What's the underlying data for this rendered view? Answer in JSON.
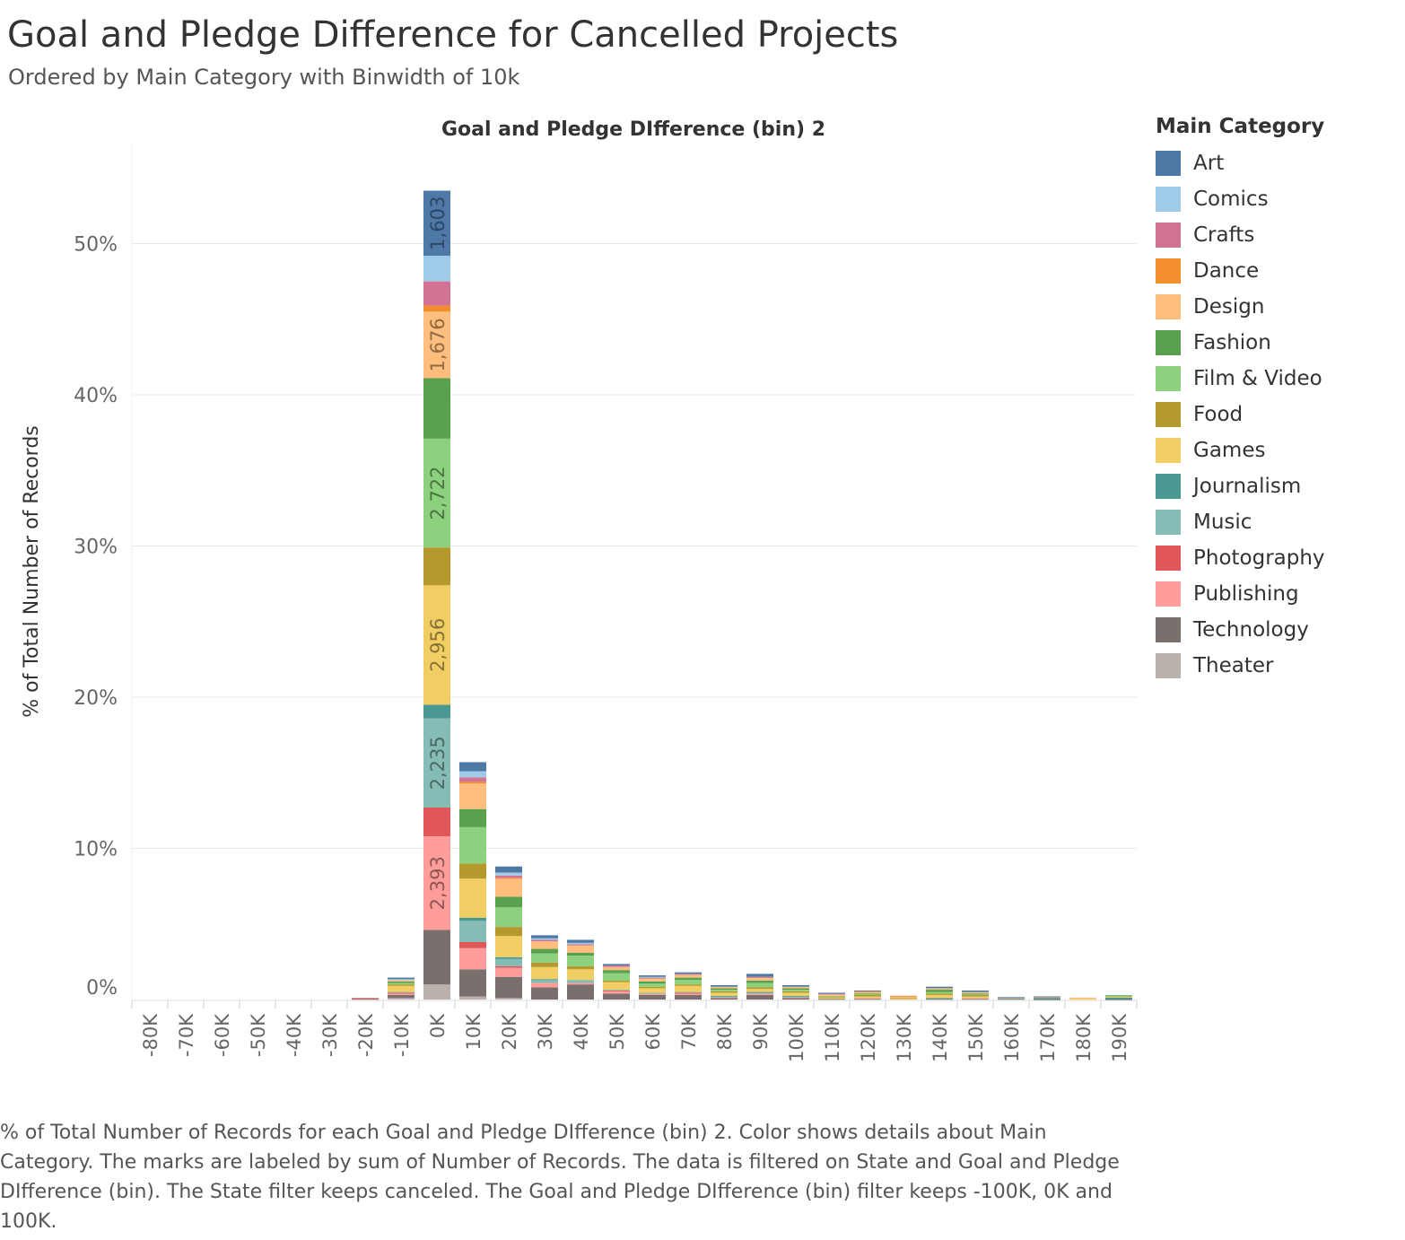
{
  "chart_data": {
    "type": "bar",
    "stacked": true,
    "title": "Goal and Pledge Difference for Cancelled Projects",
    "subtitle": "Ordered by Main Category with Binwidth of 10k",
    "column_header": "Goal and Pledge DIfference (bin) 2",
    "ylabel": "% of Total Number of Records",
    "ylim": [
      0,
      56
    ],
    "y_ticks": [
      0,
      10,
      20,
      30,
      40,
      50
    ],
    "y_tick_labels": [
      "0%",
      "10%",
      "20%",
      "30%",
      "40%",
      "50%"
    ],
    "grid": true,
    "legend_position": "right",
    "legend_title": "Main Category",
    "categories": [
      "-80K",
      "-70K",
      "-60K",
      "-50K",
      "-40K",
      "-30K",
      "-20K",
      "-10K",
      "0K",
      "10K",
      "20K",
      "30K",
      "40K",
      "50K",
      "60K",
      "70K",
      "80K",
      "90K",
      "100K",
      "110K",
      "120K",
      "130K",
      "140K",
      "150K",
      "160K",
      "170K",
      "180K",
      "190K"
    ],
    "series": [
      {
        "name": "Theater",
        "color": "#BAB0AC",
        "values": [
          0,
          0,
          0,
          0,
          0,
          0,
          0,
          0.1,
          1.0,
          0.2,
          0.1,
          0,
          0,
          0,
          0,
          0,
          0,
          0,
          0,
          0,
          0,
          0,
          0,
          0,
          0,
          0,
          0,
          0
        ]
      },
      {
        "name": "Technology",
        "color": "#79706E",
        "values": [
          0,
          0,
          0,
          0,
          0,
          0,
          0.05,
          0.2,
          3.6,
          1.8,
          1.4,
          0.8,
          1.0,
          0.4,
          0.3,
          0.3,
          0.1,
          0.3,
          0.1,
          0.05,
          0.05,
          0,
          0.05,
          0.05,
          0.05,
          0.03,
          0,
          0.03
        ]
      },
      {
        "name": "Publishing",
        "color": "#FF9D9A",
        "values": [
          0,
          0,
          0,
          0,
          0,
          0,
          0,
          0.1,
          6.2,
          1.4,
          0.6,
          0.3,
          0.1,
          0.15,
          0.1,
          0.1,
          0.05,
          0.1,
          0.05,
          0,
          0.05,
          0,
          0,
          0.05,
          0,
          0,
          0,
          0
        ]
      },
      {
        "name": "Photography",
        "color": "#E15759",
        "values": [
          0,
          0,
          0,
          0,
          0,
          0,
          0.05,
          0.05,
          1.9,
          0.4,
          0.1,
          0,
          0,
          0.05,
          0,
          0.05,
          0,
          0,
          0,
          0,
          0,
          0,
          0,
          0,
          0,
          0,
          0,
          0
        ]
      },
      {
        "name": "Music",
        "color": "#86BCB6",
        "values": [
          0,
          0,
          0,
          0,
          0,
          0,
          0,
          0.05,
          5.9,
          1.4,
          0.5,
          0.2,
          0.2,
          0.05,
          0.05,
          0.05,
          0.05,
          0.05,
          0.05,
          0,
          0,
          0,
          0,
          0,
          0,
          0,
          0,
          0
        ]
      },
      {
        "name": "Journalism",
        "color": "#499894",
        "values": [
          0,
          0,
          0,
          0,
          0,
          0,
          0,
          0,
          0.9,
          0.2,
          0.1,
          0.05,
          0,
          0,
          0,
          0,
          0.05,
          0.05,
          0.05,
          0,
          0,
          0,
          0.05,
          0,
          0.03,
          0.1,
          0,
          0.1
        ]
      },
      {
        "name": "Games",
        "color": "#F1CE63",
        "values": [
          0,
          0,
          0,
          0,
          0,
          0,
          0,
          0.4,
          7.9,
          2.6,
          1.4,
          0.8,
          0.7,
          0.5,
          0.3,
          0.4,
          0.2,
          0.2,
          0.2,
          0.1,
          0.1,
          0.05,
          0.2,
          0.1,
          0,
          0,
          0.05,
          0.05
        ]
      },
      {
        "name": "Food",
        "color": "#B6992D",
        "values": [
          0,
          0,
          0,
          0,
          0,
          0,
          0,
          0.1,
          2.5,
          1.0,
          0.6,
          0.3,
          0.2,
          0.1,
          0.1,
          0.1,
          0.1,
          0.1,
          0.1,
          0.05,
          0.1,
          0.05,
          0.1,
          0.1,
          0,
          0,
          0,
          0
        ]
      },
      {
        "name": "Film & Video",
        "color": "#8CD17D",
        "values": [
          0,
          0,
          0,
          0,
          0,
          0,
          0,
          0.1,
          7.2,
          2.4,
          1.3,
          0.6,
          0.7,
          0.5,
          0.2,
          0.3,
          0.1,
          0.3,
          0.1,
          0.05,
          0.05,
          0,
          0.1,
          0.05,
          0,
          0,
          0,
          0.05
        ]
      },
      {
        "name": "Fashion",
        "color": "#59A14F",
        "values": [
          0,
          0,
          0,
          0,
          0,
          0,
          0,
          0.1,
          4.0,
          1.2,
          0.7,
          0.3,
          0.2,
          0.2,
          0.15,
          0.15,
          0.1,
          0.15,
          0.1,
          0,
          0.05,
          0,
          0.15,
          0.05,
          0,
          0,
          0,
          0.05
        ]
      },
      {
        "name": "Design",
        "color": "#FFBE7D",
        "values": [
          0,
          0,
          0,
          0,
          0,
          0,
          0,
          0.1,
          4.4,
          1.7,
          1.2,
          0.5,
          0.5,
          0.2,
          0.2,
          0.2,
          0.1,
          0.2,
          0.1,
          0.1,
          0.1,
          0.1,
          0.1,
          0.1,
          0.03,
          0.03,
          0.08,
          0
        ]
      },
      {
        "name": "Dance",
        "color": "#F28E2B",
        "values": [
          0,
          0,
          0,
          0,
          0,
          0,
          0,
          0,
          0.4,
          0.1,
          0.05,
          0,
          0,
          0,
          0,
          0,
          0,
          0,
          0,
          0,
          0.05,
          0.05,
          0,
          0,
          0,
          0,
          0,
          0
        ]
      },
      {
        "name": "Crafts",
        "color": "#D37295",
        "values": [
          0,
          0,
          0,
          0,
          0,
          0,
          0,
          0,
          1.6,
          0.3,
          0.15,
          0.1,
          0.05,
          0.1,
          0.05,
          0.05,
          0,
          0.05,
          0,
          0.05,
          0,
          0,
          0,
          0,
          0,
          0,
          0,
          0
        ]
      },
      {
        "name": "Comics",
        "color": "#A0CBE8",
        "values": [
          0,
          0,
          0,
          0,
          0,
          0,
          0,
          0.05,
          1.7,
          0.4,
          0.2,
          0.1,
          0.1,
          0,
          0.05,
          0,
          0,
          0,
          0,
          0,
          0,
          0,
          0,
          0,
          0,
          0,
          0,
          0
        ]
      },
      {
        "name": "Art",
        "color": "#4E79A7",
        "values": [
          0,
          0,
          0,
          0,
          0,
          0,
          0,
          0.1,
          4.3,
          0.6,
          0.4,
          0.2,
          0.2,
          0.1,
          0.1,
          0.1,
          0.1,
          0.2,
          0.1,
          0.05,
          0.05,
          0,
          0.1,
          0.1,
          0.05,
          0.05,
          0,
          0
        ]
      }
    ],
    "data_labels": [
      {
        "category": "0K",
        "series": "Art",
        "text": "1,603"
      },
      {
        "category": "0K",
        "series": "Design",
        "text": "1,676"
      },
      {
        "category": "0K",
        "series": "Film & Video",
        "text": "2,722"
      },
      {
        "category": "0K",
        "series": "Games",
        "text": "2,956"
      },
      {
        "category": "0K",
        "series": "Music",
        "text": "2,235"
      },
      {
        "category": "0K",
        "series": "Publishing",
        "text": "2,393"
      }
    ],
    "legend_order": [
      "Art",
      "Comics",
      "Crafts",
      "Dance",
      "Design",
      "Fashion",
      "Film & Video",
      "Food",
      "Games",
      "Journalism",
      "Music",
      "Photography",
      "Publishing",
      "Technology",
      "Theater"
    ]
  },
  "footer_caption": "% of Total Number of Records for each Goal and Pledge DIfference (bin) 2.  Color shows details about Main Category.  The marks are labeled by sum of Number of Records. The data is filtered on State and Goal and Pledge DIfference (bin). The State filter keeps canceled. The Goal and Pledge DIfference (bin) filter keeps -100K, 0K and 100K."
}
